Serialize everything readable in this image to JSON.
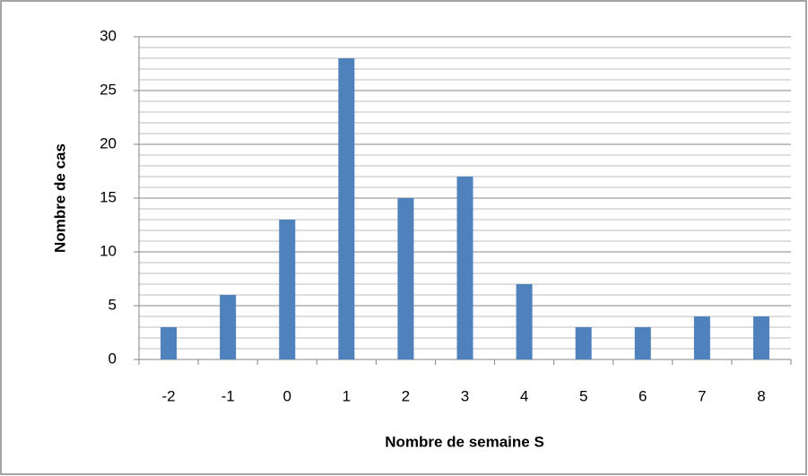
{
  "chart_data": {
    "type": "bar",
    "x_label": "Nombre de semaine S",
    "y_label": "Nombre de cas",
    "categories": [
      "-2",
      "-1",
      "0",
      "1",
      "2",
      "3",
      "4",
      "5",
      "6",
      "7",
      "8"
    ],
    "values": [
      3,
      6,
      13,
      28,
      15,
      17,
      7,
      3,
      3,
      4,
      4
    ],
    "color": "#4f81bd",
    "ylim": [
      0,
      30
    ],
    "yticks": [
      0,
      5,
      10,
      15,
      20,
      25,
      30
    ],
    "minor_yticks": [
      1,
      2,
      3,
      4,
      6,
      7,
      8,
      9,
      11,
      12,
      13,
      14,
      16,
      17,
      18,
      19,
      21,
      22,
      23,
      24,
      26,
      27,
      28,
      29
    ],
    "grid": true
  }
}
